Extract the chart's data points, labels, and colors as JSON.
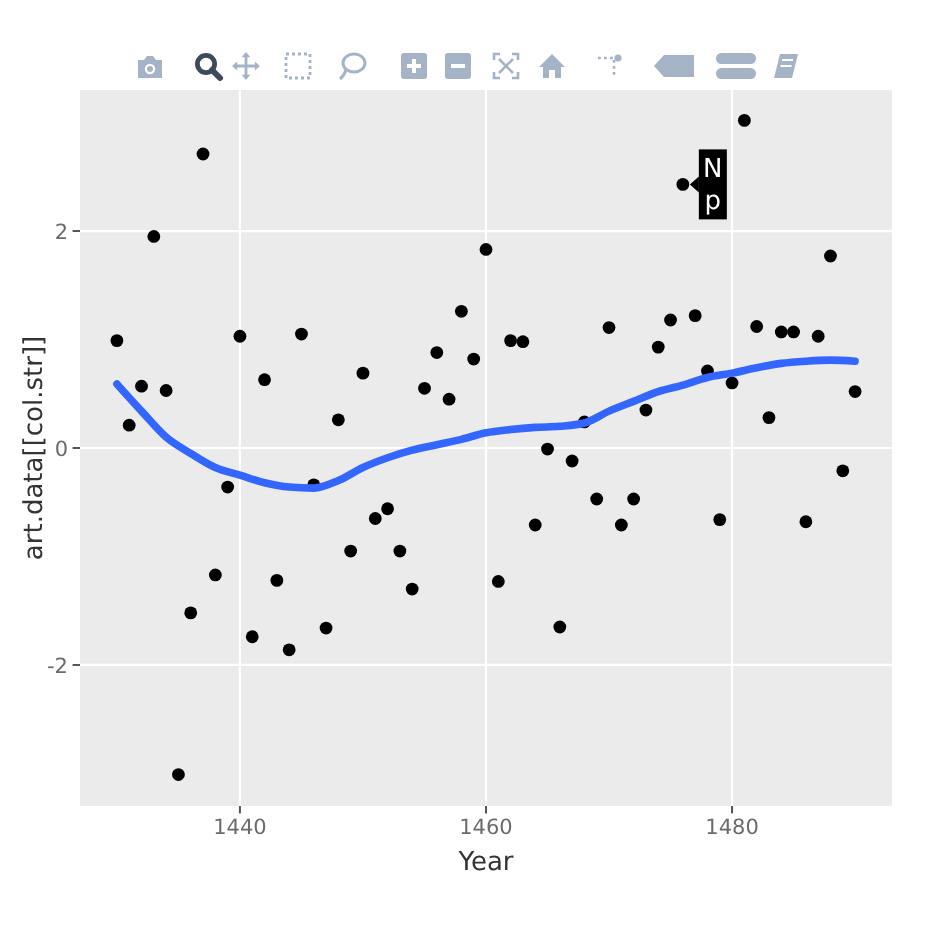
{
  "chart_data": {
    "type": "scatter",
    "xlabel": "Year",
    "ylabel": "art.data[[col.str]]",
    "xlim": [
      1427,
      1493
    ],
    "ylim": [
      -3.3,
      3.3
    ],
    "xticks": [
      1440,
      1460,
      1480
    ],
    "yticks": [
      -2,
      0,
      2
    ],
    "grid": true,
    "series": [
      {
        "color": "#000000",
        "marker": "circle",
        "x": [
          1430,
          1431,
          1432,
          1433,
          1434,
          1435,
          1436,
          1437,
          1438,
          1439,
          1440,
          1441,
          1442,
          1443,
          1444,
          1445,
          1446,
          1447,
          1448,
          1449,
          1450,
          1451,
          1452,
          1453,
          1454,
          1455,
          1456,
          1457,
          1458,
          1459,
          1460,
          1461,
          1462,
          1463,
          1464,
          1465,
          1466,
          1467,
          1468,
          1469,
          1470,
          1471,
          1472,
          1473,
          1474,
          1475,
          1476,
          1477,
          1478,
          1479,
          1480,
          1481,
          1482,
          1483,
          1484,
          1485,
          1486,
          1487,
          1488,
          1489,
          1490
        ],
        "values": [
          0.99,
          0.21,
          0.57,
          1.95,
          0.53,
          -3.01,
          -1.52,
          2.71,
          -1.17,
          -0.36,
          1.03,
          -1.74,
          0.63,
          -1.22,
          -1.86,
          1.05,
          -0.34,
          -1.66,
          0.26,
          -0.95,
          0.69,
          -0.65,
          -0.56,
          -0.95,
          -1.3,
          0.55,
          0.88,
          0.45,
          1.26,
          0.82,
          1.83,
          -1.23,
          0.99,
          0.98,
          -0.71,
          -0.01,
          -1.65,
          -0.12,
          0.24,
          -0.47,
          1.11,
          -0.71,
          -0.47,
          0.35,
          0.93,
          1.18,
          2.43,
          1.22,
          0.71,
          -0.66,
          0.6,
          3.02,
          1.12,
          0.28,
          1.07,
          1.07,
          -0.68,
          1.03,
          1.77,
          -0.21,
          0.52
        ]
      },
      {
        "type": "line",
        "color": "#3366ff",
        "x": [
          1430,
          1432,
          1434,
          1436,
          1438,
          1440,
          1442,
          1444,
          1446,
          1448,
          1450,
          1452,
          1454,
          1456,
          1458,
          1460,
          1462,
          1464,
          1466,
          1468,
          1470,
          1472,
          1474,
          1476,
          1478,
          1480,
          1482,
          1484,
          1486,
          1488,
          1490
        ],
        "values": [
          0.59,
          0.34,
          0.1,
          -0.05,
          -0.18,
          -0.25,
          -0.32,
          -0.36,
          -0.37,
          -0.3,
          -0.18,
          -0.09,
          -0.02,
          0.03,
          0.08,
          0.14,
          0.17,
          0.19,
          0.2,
          0.23,
          0.34,
          0.43,
          0.52,
          0.58,
          0.65,
          0.69,
          0.74,
          0.78,
          0.8,
          0.81,
          0.8
        ]
      }
    ],
    "annotations": [
      {
        "text": "N\np",
        "x": 1476,
        "y": 2.43
      }
    ]
  }
}
